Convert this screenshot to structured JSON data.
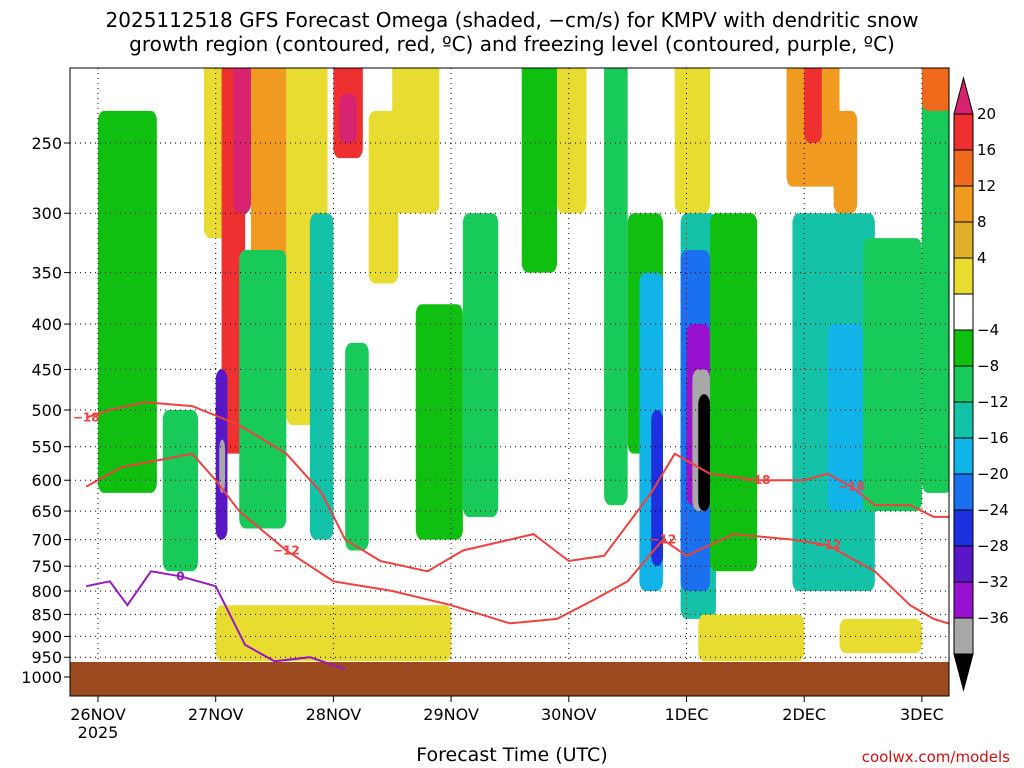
{
  "title": {
    "line1": "2025112518 GFS Forecast Omega (shaded, −cm/s) for KMPV with dendritic snow",
    "line2": "growth region (contoured, red, ºC) and freezing level (contoured, purple, ºC)"
  },
  "x_axis_title": "Forecast Time (UTC)",
  "credit": "coolwx.com/models",
  "chart_data": {
    "type": "heatmap",
    "title": "2025112518 GFS Forecast Omega (shaded, −cm/s) for KMPV with dendritic snow growth region (contoured, red, ºC) and freezing level (contoured, purple, ºC)",
    "xlabel": "Forecast Time (UTC)",
    "ylabel": "",
    "x_ticks": [
      "26NOV",
      "27NOV",
      "28NOV",
      "29NOV",
      "30NOV",
      "1DEC",
      "2DEC",
      "3DEC"
    ],
    "x_year_label": "2025",
    "x_range_days": [
      -0.1,
      7.35
    ],
    "y_ticks": [
      250,
      300,
      350,
      400,
      450,
      500,
      550,
      600,
      650,
      700,
      750,
      800,
      850,
      900,
      950,
      1000
    ],
    "y_range_hpa": [
      200,
      1030
    ],
    "y_scale": "log",
    "grid": true,
    "colorbar": {
      "labels": [
        "20",
        "16",
        "12",
        "8",
        "4",
        "−4",
        "−8",
        "−12",
        "−16",
        "−20",
        "−24",
        "−28",
        "−32",
        "−36"
      ],
      "colors": [
        "#d82470",
        "#ee3030",
        "#f06a1c",
        "#f09a20",
        "#e0b02a",
        "#e8dc30",
        "#ffffff",
        "#10c010",
        "#18ca5a",
        "#14c2a8",
        "#10b4e8",
        "#1a70ee",
        "#1c30e0",
        "#5818c8",
        "#9810d0",
        "#a8a8a8",
        "#000000"
      ]
    },
    "omega_cells": [
      {
        "d": [
          0.0,
          0.5
        ],
        "p": [
          230,
          620
        ],
        "c": 7
      },
      {
        "d": [
          0.55,
          0.85
        ],
        "p": [
          500,
          760
        ],
        "c": 8
      },
      {
        "d": [
          0.9,
          1.15
        ],
        "p": [
          200,
          320
        ],
        "c": 5
      },
      {
        "d": [
          1.05,
          1.25
        ],
        "p": [
          200,
          560
        ],
        "c": 1
      },
      {
        "d": [
          1.15,
          1.3
        ],
        "p": [
          200,
          300
        ],
        "c": 0
      },
      {
        "d": [
          1.0,
          1.1
        ],
        "p": [
          450,
          700
        ],
        "c": 13
      },
      {
        "d": [
          1.03,
          1.08
        ],
        "p": [
          540,
          620
        ],
        "c": 15
      },
      {
        "d": [
          1.3,
          1.6
        ],
        "p": [
          200,
          520
        ],
        "c": 3
      },
      {
        "d": [
          1.2,
          1.6
        ],
        "p": [
          330,
          680
        ],
        "c": 8
      },
      {
        "d": [
          1.6,
          1.95
        ],
        "p": [
          200,
          520
        ],
        "c": 5
      },
      {
        "d": [
          2.0,
          2.25
        ],
        "p": [
          200,
          260
        ],
        "c": 1
      },
      {
        "d": [
          2.05,
          2.2
        ],
        "p": [
          220,
          250
        ],
        "c": 0
      },
      {
        "d": [
          1.8,
          2.0
        ],
        "p": [
          300,
          700
        ],
        "c": 9
      },
      {
        "d": [
          2.1,
          2.3
        ],
        "p": [
          420,
          720
        ],
        "c": 8
      },
      {
        "d": [
          2.3,
          2.55
        ],
        "p": [
          230,
          360
        ],
        "c": 5
      },
      {
        "d": [
          2.5,
          2.9
        ],
        "p": [
          200,
          300
        ],
        "c": 5
      },
      {
        "d": [
          2.7,
          3.1
        ],
        "p": [
          380,
          700
        ],
        "c": 7
      },
      {
        "d": [
          3.1,
          3.4
        ],
        "p": [
          300,
          660
        ],
        "c": 8
      },
      {
        "d": [
          3.6,
          3.9
        ],
        "p": [
          200,
          350
        ],
        "c": 7
      },
      {
        "d": [
          3.9,
          4.15
        ],
        "p": [
          200,
          300
        ],
        "c": 5
      },
      {
        "d": [
          4.3,
          4.5
        ],
        "p": [
          200,
          640
        ],
        "c": 8
      },
      {
        "d": [
          4.5,
          4.8
        ],
        "p": [
          300,
          560
        ],
        "c": 7
      },
      {
        "d": [
          4.6,
          4.8
        ],
        "p": [
          350,
          800
        ],
        "c": 10
      },
      {
        "d": [
          4.7,
          4.8
        ],
        "p": [
          500,
          750
        ],
        "c": 12
      },
      {
        "d": [
          4.9,
          5.2
        ],
        "p": [
          200,
          300
        ],
        "c": 5
      },
      {
        "d": [
          4.95,
          5.25
        ],
        "p": [
          300,
          860
        ],
        "c": 9
      },
      {
        "d": [
          4.95,
          5.2
        ],
        "p": [
          330,
          800
        ],
        "c": 11
      },
      {
        "d": [
          5.0,
          5.2
        ],
        "p": [
          400,
          640
        ],
        "c": 14
      },
      {
        "d": [
          5.05,
          5.2
        ],
        "p": [
          450,
          650
        ],
        "c": 15
      },
      {
        "d": [
          5.1,
          5.2
        ],
        "p": [
          480,
          650
        ],
        "c": 16
      },
      {
        "d": [
          5.2,
          5.6
        ],
        "p": [
          300,
          760
        ],
        "c": 7
      },
      {
        "d": [
          5.85,
          6.3
        ],
        "p": [
          200,
          280
        ],
        "c": 3
      },
      {
        "d": [
          6.0,
          6.15
        ],
        "p": [
          200,
          250
        ],
        "c": 1
      },
      {
        "d": [
          6.25,
          6.45
        ],
        "p": [
          230,
          300
        ],
        "c": 3
      },
      {
        "d": [
          5.9,
          6.6
        ],
        "p": [
          300,
          800
        ],
        "c": 9
      },
      {
        "d": [
          6.2,
          6.5
        ],
        "p": [
          400,
          650
        ],
        "c": 10
      },
      {
        "d": [
          6.5,
          7.0
        ],
        "p": [
          320,
          650
        ],
        "c": 8
      },
      {
        "d": [
          7.0,
          7.25
        ],
        "p": [
          220,
          620
        ],
        "c": 8
      },
      {
        "d": [
          7.0,
          7.25
        ],
        "p": [
          200,
          230
        ],
        "c": 2
      },
      {
        "d": [
          1.0,
          3.0
        ],
        "p": [
          830,
          960
        ],
        "c": 5
      },
      {
        "d": [
          5.1,
          6.0
        ],
        "p": [
          850,
          960
        ],
        "c": 5
      },
      {
        "d": [
          6.3,
          7.0
        ],
        "p": [
          860,
          940
        ],
        "c": 5
      }
    ],
    "dgz_contours": [
      {
        "label": "−18",
        "points": [
          [
            -0.1,
            510
          ],
          [
            0.1,
            500
          ],
          [
            0.4,
            490
          ],
          [
            0.8,
            495
          ],
          [
            1.2,
            520
          ],
          [
            1.6,
            560
          ],
          [
            1.9,
            620
          ],
          [
            2.1,
            700
          ],
          [
            2.4,
            740
          ],
          [
            2.8,
            760
          ],
          [
            3.1,
            720
          ],
          [
            3.5,
            700
          ],
          [
            3.7,
            690
          ],
          [
            4.0,
            740
          ],
          [
            4.3,
            730
          ],
          [
            4.7,
            620
          ],
          [
            4.9,
            560
          ],
          [
            5.2,
            590
          ],
          [
            5.6,
            600
          ],
          [
            6.0,
            600
          ],
          [
            6.2,
            590
          ],
          [
            6.4,
            610
          ],
          [
            6.6,
            640
          ],
          [
            6.9,
            640
          ],
          [
            7.1,
            660
          ],
          [
            7.35,
            660
          ]
        ]
      },
      {
        "label": "−12",
        "points": [
          [
            -0.1,
            610
          ],
          [
            0.2,
            580
          ],
          [
            0.5,
            570
          ],
          [
            0.8,
            560
          ],
          [
            1.0,
            600
          ],
          [
            1.2,
            650
          ],
          [
            1.6,
            720
          ],
          [
            2.0,
            780
          ],
          [
            2.5,
            800
          ],
          [
            3.0,
            830
          ],
          [
            3.5,
            870
          ],
          [
            3.9,
            860
          ],
          [
            4.2,
            820
          ],
          [
            4.5,
            780
          ],
          [
            4.8,
            700
          ],
          [
            5.0,
            730
          ],
          [
            5.4,
            690
          ],
          [
            5.9,
            700
          ],
          [
            6.2,
            710
          ],
          [
            6.6,
            760
          ],
          [
            6.9,
            830
          ],
          [
            7.1,
            860
          ],
          [
            7.35,
            880
          ]
        ]
      }
    ],
    "freezing_contour": {
      "label": "0",
      "points": [
        [
          -0.1,
          790
        ],
        [
          0.1,
          780
        ],
        [
          0.25,
          830
        ],
        [
          0.45,
          760
        ],
        [
          0.7,
          770
        ],
        [
          1.0,
          790
        ],
        [
          1.25,
          920
        ],
        [
          1.5,
          960
        ],
        [
          1.8,
          950
        ],
        [
          2.1,
          980
        ]
      ]
    }
  }
}
